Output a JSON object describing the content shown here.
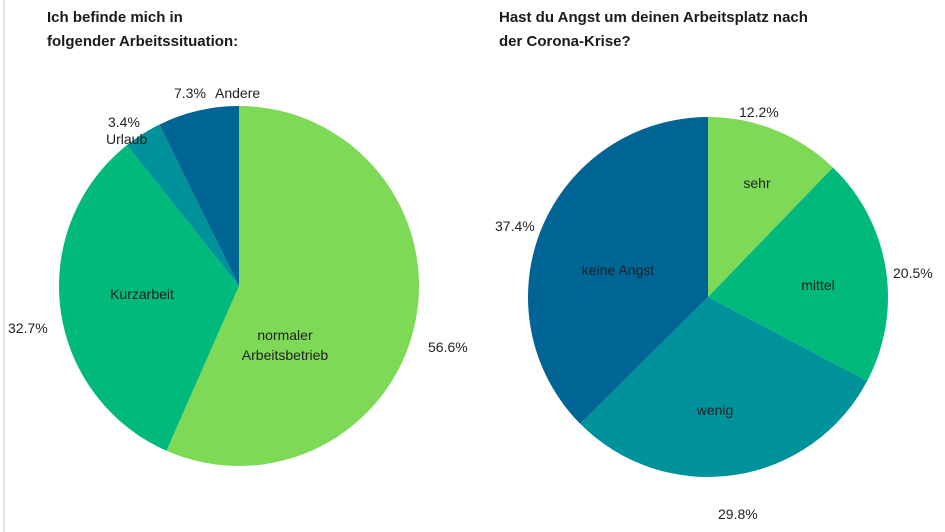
{
  "chart_data": [
    {
      "type": "pie",
      "title_line1": "Ich befinde mich in",
      "title_line2": "folgender Arbeitssituation:",
      "slices": [
        {
          "label": "normaler Arbeitsbetrieb",
          "label_line1": "normaler",
          "label_line2": "Arbeitsbetrieb",
          "value": 56.6,
          "pct": "56.6%",
          "color": "#7ed957"
        },
        {
          "label": "Kurzarbeit",
          "value": 32.7,
          "pct": "32.7%",
          "color": "#00b97a"
        },
        {
          "label": "Urlaub",
          "value": 3.4,
          "pct": "3.4%",
          "color": "#00929a"
        },
        {
          "label": "Andere",
          "value": 7.3,
          "pct": "7.3%",
          "color": "#006494"
        }
      ]
    },
    {
      "type": "pie",
      "title_line1": "Hast du Angst um deinen Arbeitsplatz nach",
      "title_line2": "der Corona-Krise?",
      "slices": [
        {
          "label": "sehr",
          "value": 12.2,
          "pct": "12.2%",
          "color": "#7ed957"
        },
        {
          "label": "mittel",
          "value": 20.5,
          "pct": "20.5%",
          "color": "#00b97a"
        },
        {
          "label": "wenig",
          "value": 29.8,
          "pct": "29.8%",
          "color": "#00929a"
        },
        {
          "label": "keine Angst",
          "value": 37.4,
          "pct": "37.4%",
          "color": "#006494"
        }
      ]
    }
  ]
}
